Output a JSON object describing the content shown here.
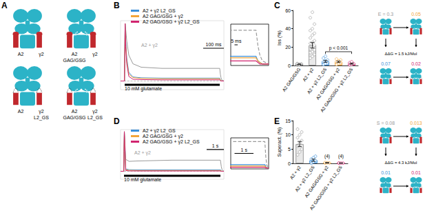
{
  "panel_labels": [
    "A",
    "B",
    "C",
    "D",
    "E"
  ],
  "diagrams": {
    "A": [
      {
        "left": [
          "A2"
        ],
        "right": [
          "γ2"
        ],
        "left_mutant": false,
        "right_mutant": false
      },
      {
        "left": [
          "A2",
          "GAG/GSG"
        ],
        "right": [
          "γ2"
        ],
        "left_mutant": true,
        "right_mutant": false
      },
      {
        "left": [
          "A2"
        ],
        "right": [
          "γ2",
          "L2_GS"
        ],
        "left_mutant": false,
        "right_mutant": true
      },
      {
        "left": [
          "A2",
          "GAG/GSG"
        ],
        "right": [
          "γ2",
          "L2_GS"
        ],
        "left_mutant": true,
        "right_mutant": true
      }
    ],
    "C": {
      "nodes": [
        {
          "label": "E = 0.3",
          "color": "#9a9a9a",
          "left_mutant": false,
          "right_mutant": false
        },
        {
          "label": "0.05",
          "color": "#f2a53a",
          "left_mutant": true,
          "right_mutant": false
        },
        {
          "label": "0.07",
          "color": "#3a8fd9",
          "left_mutant": false,
          "right_mutant": true
        },
        {
          "label": "0.02",
          "color": "#d1246f",
          "left_mutant": true,
          "right_mutant": true
        }
      ],
      "ddg": "ΔΔG = 1.5 kJ/Mol"
    },
    "E": {
      "nodes": [
        {
          "label": "S = 0.08",
          "color": "#9a9a9a",
          "left_mutant": false,
          "right_mutant": false
        },
        {
          "label": "0.013",
          "color": "#f2a53a",
          "left_mutant": true,
          "right_mutant": false
        },
        {
          "label": "0.01",
          "color": "#3a8fd9",
          "left_mutant": false,
          "right_mutant": true
        },
        {
          "label": "0.01",
          "color": "#d1246f",
          "left_mutant": true,
          "right_mutant": true
        }
      ],
      "ddg": "ΔΔG = 4.3 kJ/Mol"
    }
  },
  "chart_data": [
    {
      "type": "line",
      "tick_labels": false,
      "legend": "top-left",
      "x": [
        0,
        19,
        20,
        22,
        25,
        30,
        40,
        60,
        100,
        200,
        300,
        400,
        480,
        483,
        486,
        490,
        500
      ],
      "xlim": [
        0,
        500
      ],
      "ylim": [
        -0.15,
        1.05
      ],
      "baseline": 0,
      "series": [
        {
          "label": "A2 + γ2",
          "color": "#9a9a9a",
          "values": [
            0,
            0,
            0.3,
            1,
            0.9,
            0.7,
            0.45,
            0.3,
            0.24,
            0.22,
            0.22,
            0.22,
            0.22,
            0.12,
            0.06,
            0.02,
            0
          ]
        },
        {
          "name": "A2 + γ2 L2_GS",
          "color": "#3a8fd9",
          "values": [
            0,
            0,
            0.3,
            1,
            0.7,
            0.4,
            0.15,
            0.07,
            0.055,
            0.05,
            0.05,
            0.05,
            0.05,
            0.02,
            0.01,
            0,
            0
          ]
        },
        {
          "name": "A2 GAG/GSG + γ2",
          "color": "#f2a53a",
          "values": [
            0,
            0,
            0.3,
            1,
            0.65,
            0.35,
            0.12,
            0.06,
            0.045,
            0.04,
            0.04,
            0.04,
            0.04,
            0.02,
            0.01,
            0,
            0
          ]
        },
        {
          "name": "A2 GAG/GSG + γ2 L2_GS",
          "color": "#d1246f",
          "values": [
            0,
            0,
            0.3,
            1,
            0.6,
            0.3,
            0.08,
            0.03,
            0.025,
            0.02,
            0.02,
            0.02,
            0.02,
            0.01,
            0,
            0,
            0
          ]
        }
      ],
      "stimulus": {
        "label": "10 mM glutamate",
        "start": 20,
        "end": 480
      },
      "scale_bar": {
        "label": "100 ms",
        "length": 100
      },
      "inset": {
        "xlim": [
          440,
          500
        ],
        "ylim": [
          -0.01,
          0.26
        ],
        "scale_bar": {
          "label": "5 ms",
          "length": 5
        }
      }
    },
    {
      "type": "bar",
      "ylabel": "Iss (%)",
      "categories": [
        "A2 GAG/GSG",
        "A2 + γ2",
        "A2 + γ2 L2_GS",
        "A2 GAG/GSG + γ2",
        "A2 GAG/GSG + γ2 L2_GS"
      ],
      "values": [
        1.2,
        22,
        4.5,
        4,
        2
      ],
      "errors": [
        0.3,
        3,
        1,
        0.8,
        0.6
      ],
      "points": [
        [
          0.5,
          1,
          1.5,
          2,
          0.8
        ],
        [
          8,
          10,
          12,
          14,
          15,
          17,
          18,
          20,
          22,
          24,
          25,
          27,
          30,
          33,
          35,
          38,
          40,
          45,
          52,
          58
        ],
        [
          1,
          2,
          3,
          4,
          5,
          6,
          8,
          10
        ],
        [
          1,
          2,
          3,
          4,
          5,
          6,
          7
        ],
        [
          0.5,
          1,
          2,
          3,
          4
        ]
      ],
      "colors": [
        "#555555",
        "#9a9a9a",
        "#3a8fd9",
        "#f2a53a",
        "#d1246f"
      ],
      "ylim": [
        0,
        60
      ],
      "yticks": [
        0,
        20,
        40,
        60
      ],
      "annotations": [
        {
          "text": "p < 0.001",
          "from": "A2 + γ2 L2_GS",
          "to": "A2 GAG/GSG + γ2 L2_GS",
          "y": 15
        }
      ]
    },
    {
      "type": "line",
      "tick_labels": false,
      "legend": "top-left",
      "x": [
        0,
        0.19,
        0.2,
        0.22,
        0.3,
        0.5,
        1,
        2,
        3,
        4,
        5,
        5.8,
        5.85,
        5.9,
        6
      ],
      "xlim": [
        0,
        6
      ],
      "ylim": [
        -0.2,
        1.05
      ],
      "baseline": 0,
      "series": [
        {
          "label": "A2 + γ2",
          "color": "#9a9a9a",
          "values": [
            0,
            0,
            0.5,
            1,
            0.3,
            0.25,
            0.26,
            0.27,
            0.28,
            0.28,
            0.28,
            0.28,
            0.12,
            0.03,
            0
          ]
        },
        {
          "name": "A2 + γ2 L2_GS",
          "color": "#3a8fd9",
          "values": [
            0,
            0,
            0.5,
            1,
            0.06,
            0.04,
            0.035,
            0.035,
            0.035,
            0.035,
            0.035,
            0.035,
            0.015,
            0,
            0
          ]
        },
        {
          "name": "A2 GAG/GSG + γ2",
          "color": "#f2a53a",
          "values": [
            0,
            0,
            0.5,
            1,
            0.04,
            0.025,
            0.02,
            0.02,
            0.02,
            0.02,
            0.02,
            0.02,
            0.01,
            0,
            0
          ]
        },
        {
          "name": "A2 GAG/GSG + γ2 L2_GS",
          "color": "#d1246f",
          "values": [
            0,
            0,
            0.5,
            1,
            0.02,
            0.01,
            0.008,
            0.008,
            0.008,
            0.008,
            0.008,
            0.008,
            0,
            0,
            0
          ]
        }
      ],
      "stimulus": {
        "label": "10 mM glutamate",
        "start": 0.2,
        "end": 5.8
      },
      "scale_bar": {
        "label": "1 s",
        "length": 1
      },
      "inset": {
        "xlim": [
          4,
          6
        ],
        "ylim": [
          -0.01,
          0.32
        ],
        "scale_bar": {
          "label": "1 s",
          "length": 1
        }
      }
    },
    {
      "type": "bar",
      "ylabel": "Superact. (%)",
      "categories": [
        "A2 + γ2",
        "A2 + γ2 L2_GS",
        "A2 GAG/GSG + γ2",
        "A2 GAG/GSG + γ2 L2_GS"
      ],
      "values": [
        6.8,
        1.1,
        0.2,
        0.1
      ],
      "errors": [
        0.9,
        0.4,
        0.1,
        0.05
      ],
      "points": [
        [
          3,
          4,
          5,
          6,
          7,
          8,
          9,
          10,
          11,
          12
        ],
        [
          0,
          0.5,
          1,
          1.5,
          2,
          2.5
        ],
        [
          0.1,
          0.2,
          0.15,
          0.3
        ],
        [
          0.05,
          0.1,
          0.08,
          0.15
        ]
      ],
      "n_labels": [
        null,
        null,
        "(4)",
        "(4)"
      ],
      "colors": [
        "#9a9a9a",
        "#3a8fd9",
        "#f2a53a",
        "#d1246f"
      ],
      "ylim": [
        0,
        15
      ],
      "yticks": [
        0,
        5,
        10,
        15
      ]
    }
  ]
}
